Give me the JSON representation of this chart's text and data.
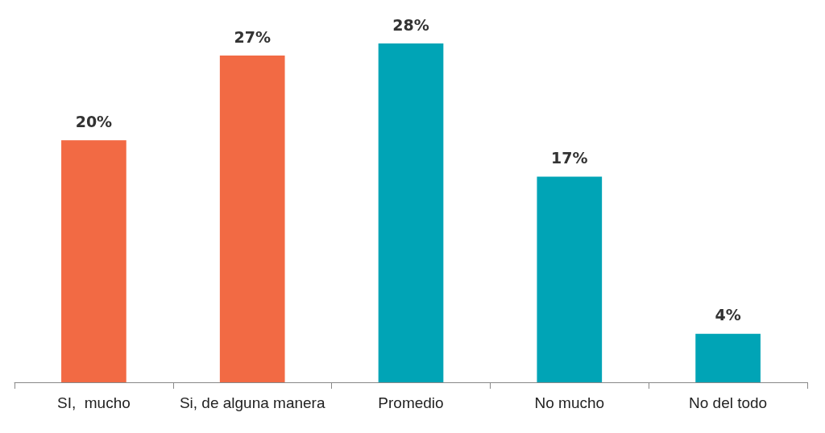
{
  "chart_data": {
    "type": "bar",
    "categories": [
      "SI,  mucho",
      "Si, de alguna manera",
      "Promedio",
      "No mucho",
      "No del todo"
    ],
    "values": [
      20,
      27,
      28,
      17,
      4
    ],
    "value_labels": [
      "20%",
      "27%",
      "28%",
      "17%",
      "4%"
    ],
    "colors": [
      "#f26a44",
      "#f26a44",
      "#00a4b6",
      "#00a4b6",
      "#00a4b6"
    ]
  }
}
